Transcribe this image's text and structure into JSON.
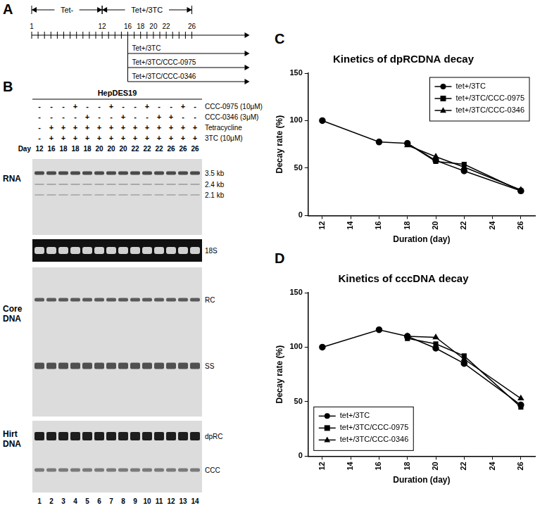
{
  "panel_labels": {
    "timeline": "A",
    "gel": "B",
    "charts": [
      "C",
      "D"
    ]
  },
  "timeline": {
    "day_range": [
      1,
      26
    ],
    "day_labels": [
      1,
      12,
      16,
      18,
      20,
      22,
      26
    ],
    "phases": [
      {
        "label": "Tet-",
        "from": 1,
        "to": 12
      },
      {
        "label": "Tet+/3TC",
        "from": 12,
        "to": 26
      }
    ],
    "treatment_start": 16,
    "treatments": [
      "Tet+/3TC",
      "Tet+/3TC/CCC-0975",
      "Tet+/3TC/CCC-0346"
    ]
  },
  "gel": {
    "header": "HepDES19",
    "conditions": [
      {
        "label": "CCC-0975 (10μM)",
        "lanes": [
          "-",
          "-",
          "-",
          "+",
          "-",
          "-",
          "+",
          "-",
          "-",
          "+",
          "-",
          "-",
          "+",
          "-"
        ]
      },
      {
        "label": "CCC-0346 (3μM)",
        "lanes": [
          "-",
          "-",
          "-",
          "-",
          "+",
          "-",
          "-",
          "+",
          "-",
          "-",
          "+",
          "+",
          "-",
          "-"
        ]
      },
      {
        "label": "Tetracycline",
        "lanes": [
          "-",
          "+",
          "+",
          "+",
          "+",
          "+",
          "+",
          "+",
          "+",
          "+",
          "+",
          "+",
          "+",
          "+"
        ]
      },
      {
        "label": "3TC (10μM)",
        "lanes": [
          "-",
          "+",
          "+",
          "+",
          "+",
          "+",
          "+",
          "+",
          "+",
          "+",
          "+",
          "+",
          "+",
          "+"
        ]
      }
    ],
    "day_label": "Day",
    "days": [
      12,
      16,
      18,
      18,
      18,
      20,
      20,
      20,
      22,
      22,
      22,
      26,
      26,
      26
    ],
    "lane_numbers": [
      1,
      2,
      3,
      4,
      5,
      6,
      7,
      8,
      9,
      10,
      11,
      12,
      13,
      14
    ],
    "blots": [
      {
        "name": "RNA",
        "band_labels": [
          "3.5 kb",
          "2.4 kb",
          "2.1 kb"
        ]
      },
      {
        "inner_label": "18S"
      },
      {
        "name": "Core DNA",
        "band_labels": [
          "RC",
          "SS"
        ]
      },
      {
        "name": "Hirt DNA",
        "band_labels": [
          "dpRC",
          "CCC"
        ]
      }
    ]
  },
  "chart_data": [
    {
      "type": "line",
      "title": "Kinetics of dpRCDNA decay",
      "x_label": "Duration (day)",
      "y_label": "Decay rate (%)",
      "x": [
        12,
        16,
        18,
        20,
        22,
        26
      ],
      "series": [
        {
          "name": "tet+/3TC",
          "color": "#000000",
          "marker": "circle",
          "values": [
            100,
            77.5,
            76,
            58,
            47,
            26
          ]
        },
        {
          "name": "tet+/3TC/CCC-0975",
          "color": "#000000",
          "marker": "square",
          "values": [
            null,
            null,
            76,
            57,
            54,
            26
          ]
        },
        {
          "name": "tet+/3TC/CCC-0346",
          "color": "#000000",
          "marker": "triangle",
          "values": [
            null,
            null,
            74,
            62,
            51,
            27
          ]
        }
      ],
      "xlim": [
        11,
        27
      ],
      "xticks": [
        12,
        14,
        16,
        18,
        20,
        22,
        24,
        26
      ],
      "ylim": [
        0,
        150
      ],
      "yticks": [
        0,
        50,
        100,
        150
      ],
      "grid": false,
      "legend": "upper right"
    },
    {
      "type": "line",
      "title": "Kinetics of cccDNA decay",
      "x_label": "Duration (day)",
      "y_label": "Decay rate (%)",
      "x": [
        12,
        16,
        18,
        20,
        22,
        26
      ],
      "series": [
        {
          "name": "tet+/3TC",
          "color": "#000000",
          "marker": "circle",
          "values": [
            100,
            116,
            110,
            99,
            85,
            47
          ]
        },
        {
          "name": "tet+/3TC/CCC-0975",
          "color": "#000000",
          "marker": "square",
          "values": [
            null,
            null,
            108,
            103,
            92,
            45
          ]
        },
        {
          "name": "tet+/3TC/CCC-0346",
          "color": "#000000",
          "marker": "triangle",
          "values": [
            null,
            null,
            110,
            109,
            89,
            53
          ]
        }
      ],
      "xlim": [
        11,
        27
      ],
      "xticks": [
        12,
        14,
        16,
        18,
        20,
        22,
        24,
        26
      ],
      "ylim": [
        0,
        150
      ],
      "yticks": [
        0,
        50,
        100,
        150
      ],
      "grid": false,
      "legend": "lower left"
    }
  ]
}
